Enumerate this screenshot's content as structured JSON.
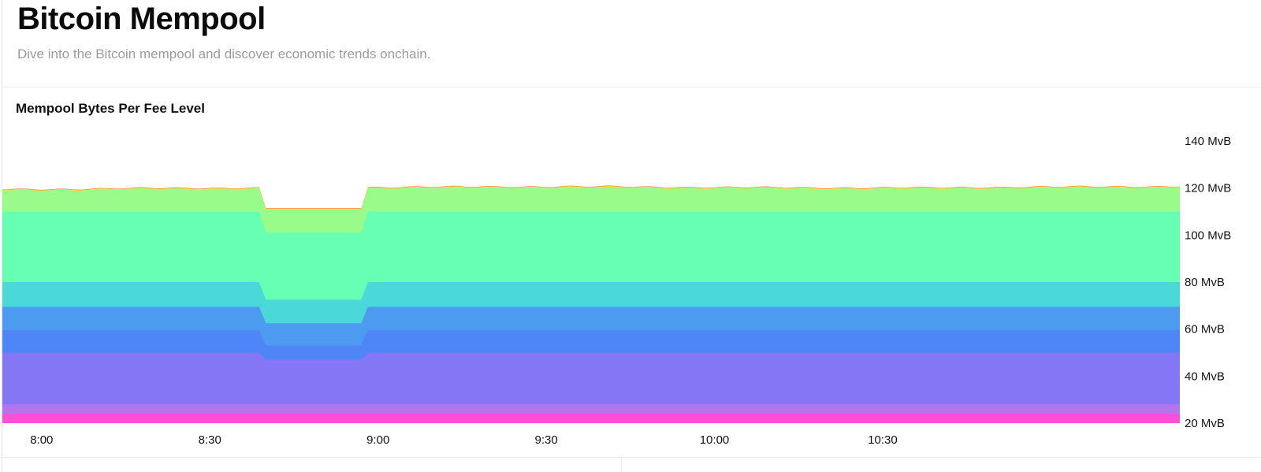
{
  "header": {
    "title": "Bitcoin Mempool",
    "subtitle": "Dive into the Bitcoin mempool and discover economic trends onchain."
  },
  "chart_card": {
    "title": "Mempool Bytes Per Fee Level"
  },
  "chart_data": {
    "type": "area",
    "title": "Mempool Bytes Per Fee Level",
    "stacked": true,
    "x_unit": "time",
    "x_tick_labels": [
      "8:00",
      "8:30",
      "9:00",
      "9:30",
      "10:00",
      "10:30"
    ],
    "y_tick_labels": [
      "20 MvB",
      "40 MvB",
      "60 MvB",
      "80 MvB",
      "100 MvB",
      "120 MvB",
      "140 MvB"
    ],
    "y_unit": "MvB",
    "ylim": [
      20,
      140
    ],
    "xlim": [
      "7:53",
      "11:23"
    ],
    "grid": false,
    "legend": "none",
    "dip_window": {
      "start": "8:40",
      "end": "8:57"
    },
    "series": [
      {
        "color": "#ff4fd8",
        "normal_top": 24.0,
        "dip_top": 24.0
      },
      {
        "color": "#b474ee",
        "normal_top": 28.0,
        "dip_top": 28.0
      },
      {
        "color": "#8576f5",
        "normal_top": 50.0,
        "dip_top": 47.0
      },
      {
        "color": "#4f86f7",
        "normal_top": 59.5,
        "dip_top": 53.0
      },
      {
        "color": "#4d9bf0",
        "normal_top": 69.5,
        "dip_top": 62.5
      },
      {
        "color": "#4ad8d8",
        "normal_top": 80.0,
        "dip_top": 72.5
      },
      {
        "color": "#66ffb3",
        "normal_top": 110.0,
        "dip_top": 101.0
      },
      {
        "color": "#99fb89",
        "normal_top_series": [
          119.0,
          119.2,
          119.5,
          119.6,
          119.7,
          119.9,
          120.0,
          120.1,
          120.2,
          120.3,
          120.2,
          120.0,
          119.9,
          119.8,
          119.7,
          119.8,
          120.0,
          120.1,
          120.3,
          120.3
        ],
        "dip_top": 111.0
      },
      {
        "color": "#ffd84a",
        "thin_band": true
      },
      {
        "color": "#ff7a30",
        "thin_band": true
      }
    ]
  }
}
